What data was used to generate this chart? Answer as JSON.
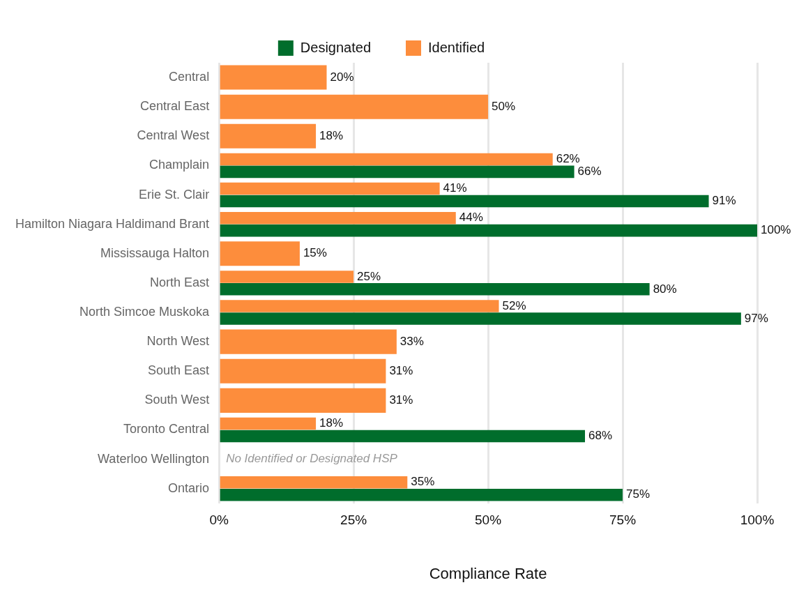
{
  "chart_data": {
    "type": "bar",
    "orientation": "horizontal",
    "xlabel": "Compliance Rate",
    "categories": [
      "Central",
      "Central East",
      "Central West",
      "Champlain",
      "Erie St. Clair",
      "Hamilton Niagara Haldimand Brant",
      "Mississauga Halton",
      "North East",
      "North Simcoe Muskoka",
      "North West",
      "South East",
      "South West",
      "Toronto Central",
      "Waterloo Wellington",
      "Ontario"
    ],
    "series": [
      {
        "name": "Identified",
        "color": "#fd8d3c",
        "values": [
          20,
          50,
          18,
          62,
          41,
          44,
          15,
          25,
          52,
          33,
          31,
          31,
          18,
          null,
          35
        ],
        "value_labels": [
          "20%",
          "50%",
          "18%",
          "62%",
          "41%",
          "44%",
          "15%",
          "25%",
          "52%",
          "33%",
          "31%",
          "31%",
          "18%",
          null,
          "35%"
        ]
      },
      {
        "name": "Designated",
        "color": "#006d2c",
        "values": [
          null,
          null,
          null,
          66,
          91,
          100,
          null,
          80,
          97,
          null,
          null,
          null,
          68,
          null,
          75
        ],
        "value_labels": [
          null,
          null,
          null,
          "66%",
          "91%",
          "100%",
          null,
          "80%",
          "97%",
          null,
          null,
          null,
          "68%",
          null,
          "75%"
        ]
      }
    ],
    "xlim": [
      0,
      100
    ],
    "xticks": [
      {
        "value": 0,
        "label": "0%"
      },
      {
        "value": 25,
        "label": "25%"
      },
      {
        "value": 50,
        "label": "50%"
      },
      {
        "value": 75,
        "label": "75%"
      },
      {
        "value": 100,
        "label": "100%"
      }
    ],
    "grid": "x",
    "legend": "top",
    "annotations": [
      "No Identified or Designated HSP"
    ]
  }
}
